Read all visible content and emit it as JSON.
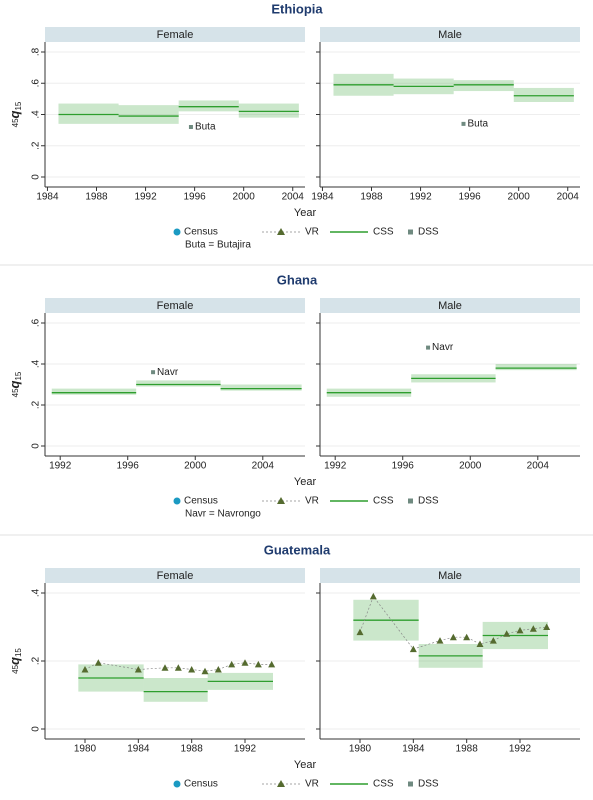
{
  "chart_data": [
    {
      "type": "period-panels",
      "title": "Ethiopia",
      "xlabel": "Year",
      "ylabel": [
        "45",
        "q",
        "15"
      ],
      "xlim": [
        1983.8,
        2005
      ],
      "xticks": [
        1984,
        1988,
        1992,
        1996,
        2000,
        2004
      ],
      "ylim": [
        0,
        0.8
      ],
      "yticks": [
        0,
        {
          "value": 0.2,
          "label": ".2"
        },
        {
          "value": 0.4,
          "label": ".4"
        },
        {
          "value": 0.6,
          "label": ".6"
        },
        {
          "value": 0.8,
          "label": ".8"
        }
      ],
      "grid": true,
      "legend": [
        {
          "name": "Census",
          "color": "#1b9ac2",
          "marker": "circle"
        },
        {
          "name": "VR",
          "color": "#556b2f",
          "marker": "triangle"
        },
        {
          "name": "CSS",
          "color": "#2e9e2e",
          "marker": "line"
        },
        {
          "name": "DSS",
          "color": "#6f8a80",
          "marker": "square"
        }
      ],
      "note": "Buta = Butajira",
      "panels": [
        {
          "title": "Female",
          "css": {
            "x0": [
              1984.9,
              1989.8,
              1994.7,
              1999.6
            ],
            "x1": [
              1989.8,
              1994.7,
              1999.6,
              2004.5
            ],
            "values": [
              0.4,
              0.39,
              0.45,
              0.42
            ],
            "lower": [
              0.34,
              0.34,
              0.42,
              0.38
            ],
            "upper": [
              0.47,
              0.46,
              0.49,
              0.47
            ]
          },
          "dss": {
            "x": [
              1995.7
            ],
            "values": [
              0.32
            ],
            "labels": [
              "Buta"
            ]
          }
        },
        {
          "title": "Male",
          "css": {
            "x0": [
              1984.9,
              1989.8,
              1994.7,
              1999.6
            ],
            "x1": [
              1989.8,
              1994.7,
              1999.6,
              2004.5
            ],
            "values": [
              0.59,
              0.58,
              0.59,
              0.52
            ],
            "lower": [
              0.52,
              0.53,
              0.55,
              0.48
            ],
            "upper": [
              0.66,
              0.63,
              0.62,
              0.57
            ]
          },
          "dss": {
            "x": [
              1995.5
            ],
            "values": [
              0.34
            ],
            "labels": [
              "Buta"
            ]
          }
        }
      ]
    },
    {
      "type": "period-panels",
      "title": "Ghana",
      "xlabel": "Year",
      "ylabel": [
        "45",
        "q",
        "15"
      ],
      "xlim": [
        1991.1,
        2006.5
      ],
      "xticks": [
        1992,
        1996,
        2000,
        2004
      ],
      "ylim": [
        0,
        0.6
      ],
      "yticks": [
        0,
        {
          "value": 0.2,
          "label": ".2"
        },
        {
          "value": 0.4,
          "label": ".4"
        },
        {
          "value": 0.6,
          "label": ".6"
        }
      ],
      "grid": true,
      "legend": [
        {
          "name": "Census",
          "color": "#1b9ac2",
          "marker": "circle"
        },
        {
          "name": "VR",
          "color": "#556b2f",
          "marker": "triangle"
        },
        {
          "name": "CSS",
          "color": "#2e9e2e",
          "marker": "line"
        },
        {
          "name": "DSS",
          "color": "#6f8a80",
          "marker": "square"
        }
      ],
      "note": "Navr = Navrongo",
      "panels": [
        {
          "title": "Female",
          "css": {
            "x0": [
              1991.5,
              1996.5,
              2001.5
            ],
            "x1": [
              1996.5,
              2001.5,
              2006.3
            ],
            "values": [
              0.26,
              0.3,
              0.28
            ],
            "lower": [
              0.25,
              0.29,
              0.27
            ],
            "upper": [
              0.28,
              0.32,
              0.3
            ]
          },
          "dss": {
            "x": [
              1997.5
            ],
            "values": [
              0.36
            ],
            "labels": [
              "Navr"
            ]
          }
        },
        {
          "title": "Male",
          "css": {
            "x0": [
              1991.5,
              1996.5,
              2001.5
            ],
            "x1": [
              1996.5,
              2001.5,
              2006.3
            ],
            "values": [
              0.26,
              0.33,
              0.38
            ],
            "lower": [
              0.24,
              0.31,
              0.37
            ],
            "upper": [
              0.28,
              0.35,
              0.4
            ]
          },
          "dss": {
            "x": [
              1997.5
            ],
            "values": [
              0.48
            ],
            "labels": [
              "Navr"
            ]
          }
        }
      ]
    },
    {
      "type": "period-panels",
      "title": "Guatemala",
      "xlabel": "Year",
      "ylabel": [
        "45",
        "q",
        "15"
      ],
      "xlim": [
        1977,
        1996.5
      ],
      "xticks": [
        1980,
        1984,
        1988,
        1992
      ],
      "ylim": [
        0,
        0.4
      ],
      "yticks": [
        0,
        {
          "value": 0.2,
          "label": ".2"
        },
        {
          "value": 0.4,
          "label": ".4"
        }
      ],
      "grid": true,
      "legend": [
        {
          "name": "Census",
          "color": "#1b9ac2",
          "marker": "circle"
        },
        {
          "name": "VR",
          "color": "#556b2f",
          "marker": "triangle"
        },
        {
          "name": "CSS",
          "color": "#2e9e2e",
          "marker": "line"
        },
        {
          "name": "DSS",
          "color": "#6f8a80",
          "marker": "square"
        }
      ],
      "panels": [
        {
          "title": "Female",
          "css": {
            "x0": [
              1979.5,
              1984.4,
              1989.2
            ],
            "x1": [
              1984.4,
              1989.2,
              1994.1
            ],
            "values": [
              0.15,
              0.11,
              0.14
            ],
            "lower": [
              0.11,
              0.08,
              0.115
            ],
            "upper": [
              0.19,
              0.15,
              0.165
            ]
          },
          "vr": {
            "x": [
              1980,
              1981,
              1984,
              1986,
              1987,
              1988,
              1989,
              1990,
              1991,
              1992,
              1993,
              1994
            ],
            "values": [
              0.175,
              0.195,
              0.175,
              0.18,
              0.18,
              0.175,
              0.17,
              0.175,
              0.19,
              0.195,
              0.19,
              0.19
            ]
          }
        },
        {
          "title": "Male",
          "css": {
            "x0": [
              1979.5,
              1984.4,
              1989.2
            ],
            "x1": [
              1984.4,
              1989.2,
              1994.1
            ],
            "values": [
              0.32,
              0.215,
              0.275
            ],
            "lower": [
              0.26,
              0.18,
              0.235
            ],
            "upper": [
              0.38,
              0.25,
              0.315
            ]
          },
          "vr": {
            "x": [
              1980,
              1981,
              1984,
              1986,
              1987,
              1988,
              1989,
              1990,
              1991,
              1992,
              1993,
              1994
            ],
            "values": [
              0.285,
              0.39,
              0.235,
              0.26,
              0.27,
              0.27,
              0.25,
              0.26,
              0.28,
              0.29,
              0.295,
              0.3
            ]
          }
        }
      ]
    }
  ]
}
